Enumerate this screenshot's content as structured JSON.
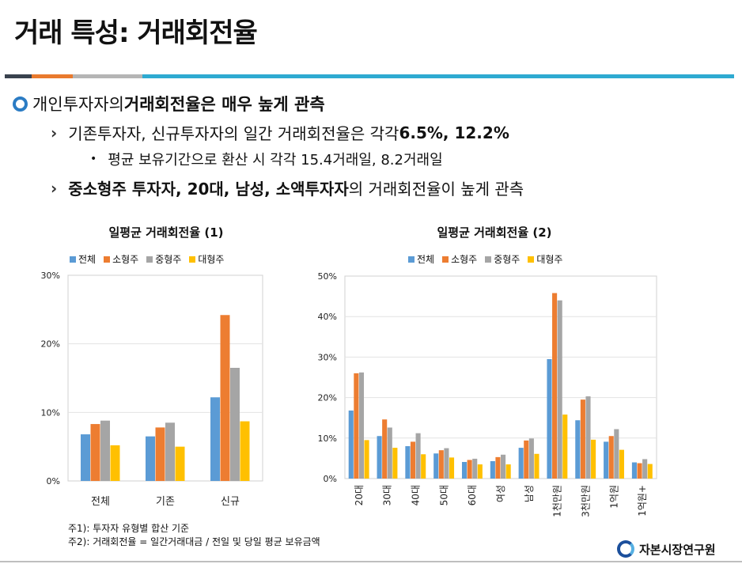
{
  "page": {
    "title": "거래 특성: 거래회전율",
    "colors": {
      "bar1": "#39424e",
      "bar2": "#e97a2e",
      "bar3": "#b5b5b5",
      "bar4": "#2eaad1",
      "bullet_ring": "#2b7cc4"
    }
  },
  "bullets": {
    "l1": "개인투자자의 ",
    "l1_bold": "거래회전율은 매우 높게 관측",
    "l2a": "기존투자자, 신규투자자의 일간 거래회전율은 각각 ",
    "l2a_bold": "6.5%, 12.2%",
    "l3": "평균 보유기간으로 환산 시 각각 15.4거래일, 8.2거래일",
    "l2b_bold": "중소형주 투자자, 20대, 남성, 소액투자자",
    "l2b": "의 거래회전율이 높게 관측"
  },
  "chart_data": [
    {
      "type": "bar",
      "title": "일평균 거래회전율 (1)",
      "categories": [
        "전체",
        "기존",
        "신규"
      ],
      "series": [
        {
          "name": "전체",
          "color": "#5b9bd5",
          "values": [
            6.8,
            6.5,
            12.2
          ]
        },
        {
          "name": "소형주",
          "color": "#ed7d31",
          "values": [
            8.3,
            7.8,
            24.2
          ]
        },
        {
          "name": "중형주",
          "color": "#a5a5a5",
          "values": [
            8.8,
            8.5,
            16.5
          ]
        },
        {
          "name": "대형주",
          "color": "#ffc000",
          "values": [
            5.2,
            5.0,
            8.7
          ]
        }
      ],
      "ylim": [
        0,
        30
      ],
      "yticks": [
        0,
        10,
        20,
        30
      ],
      "ytick_labels": [
        "0%",
        "10%",
        "20%",
        "30%"
      ],
      "legend": "top"
    },
    {
      "type": "bar",
      "title": "일평균 거래회전율 (2)",
      "categories": [
        "20대",
        "30대",
        "40대",
        "50대",
        "60대",
        "여성",
        "남성",
        "1천만원",
        "3천만원",
        "1억원",
        "1억원+"
      ],
      "series": [
        {
          "name": "전체",
          "color": "#5b9bd5",
          "values": [
            16.8,
            10.5,
            8.0,
            6.2,
            4.1,
            4.3,
            7.6,
            29.5,
            14.4,
            9.1,
            4.0
          ]
        },
        {
          "name": "소형주",
          "color": "#ed7d31",
          "values": [
            26.0,
            14.6,
            9.1,
            7.0,
            4.6,
            5.3,
            9.4,
            45.8,
            19.5,
            10.5,
            3.8
          ]
        },
        {
          "name": "중형주",
          "color": "#a5a5a5",
          "values": [
            26.2,
            12.6,
            11.2,
            7.5,
            4.9,
            5.9,
            9.9,
            44.0,
            20.3,
            12.2,
            4.8
          ]
        },
        {
          "name": "대형주",
          "color": "#ffc000",
          "values": [
            9.5,
            7.6,
            6.0,
            5.2,
            3.5,
            3.5,
            6.1,
            15.8,
            9.6,
            7.1,
            3.6
          ]
        }
      ],
      "ylim": [
        0,
        50
      ],
      "yticks": [
        0,
        10,
        20,
        30,
        40,
        50
      ],
      "ytick_labels": [
        "0%",
        "10%",
        "20%",
        "30%",
        "40%",
        "50%"
      ],
      "legend": "top"
    }
  ],
  "notes": {
    "n1": "주1): 투자자 유형별 합산 기준",
    "n2": "주2): 거래회전율 = 일간거래대금 / 전일 및 당일 평균 보유금액"
  },
  "logo": {
    "text": "자본시장연구원"
  }
}
